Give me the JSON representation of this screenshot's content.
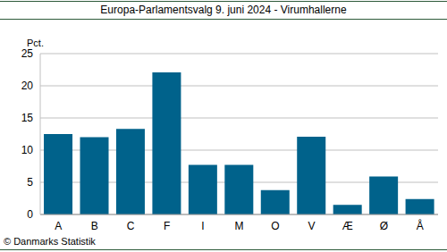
{
  "chart_data": {
    "type": "bar",
    "title": "Europa-Parlamentsvalg 9. juni 2024 - Virumhallerne",
    "y_label": "Pct.",
    "source": "© Danmarks Statistik",
    "categories": [
      "A",
      "B",
      "C",
      "F",
      "I",
      "M",
      "O",
      "V",
      "Æ",
      "Ø",
      "Å"
    ],
    "values": [
      12.5,
      12.0,
      13.3,
      22.1,
      7.7,
      7.7,
      3.8,
      12.1,
      1.5,
      5.9,
      2.4
    ],
    "color": "#00628b",
    "ylim": [
      0,
      25
    ],
    "yticks": [
      0,
      5,
      10,
      15,
      20,
      25
    ],
    "grid": true
  }
}
